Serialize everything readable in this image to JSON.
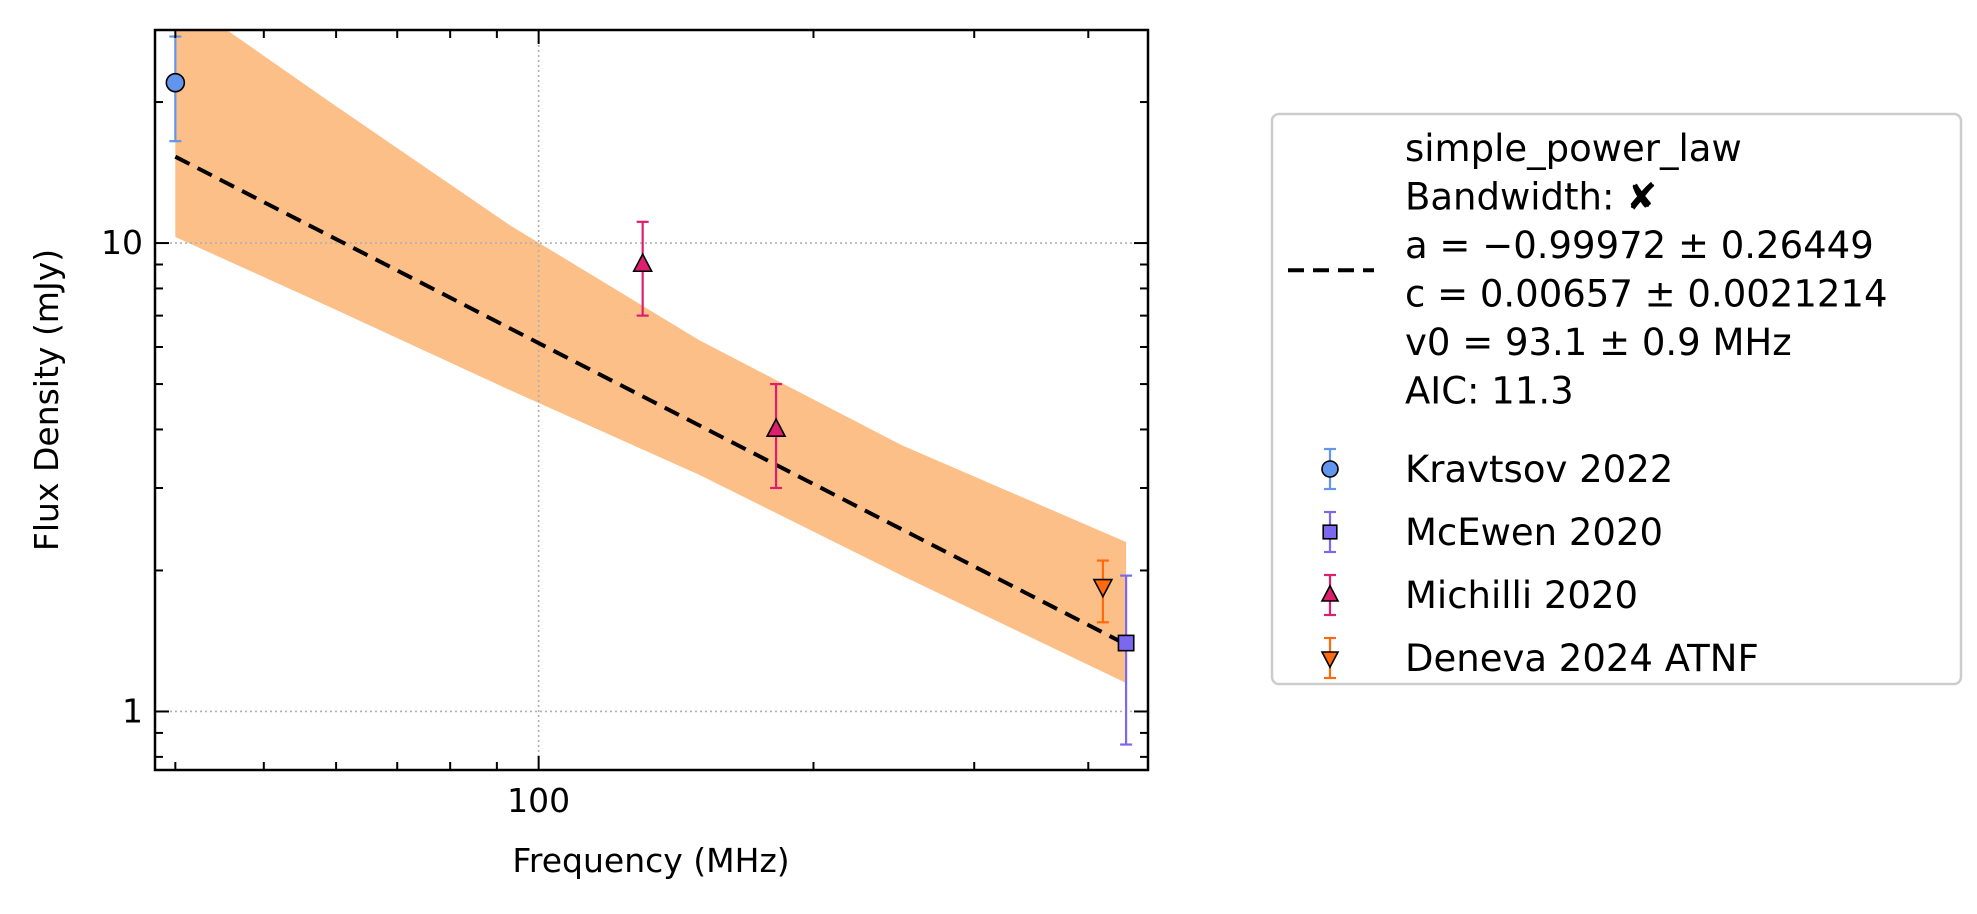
{
  "chart_data": {
    "type": "scatter",
    "title": "",
    "xlabel": "Frequency (MHz)",
    "ylabel": "Flux Density (mJy)",
    "xscale": "log",
    "yscale": "log",
    "xlim": [
      38,
      465
    ],
    "ylim": [
      0.75,
      28.5
    ],
    "xticks": [
      {
        "value": 100,
        "label": "100"
      }
    ],
    "yticks": [
      {
        "value": 1,
        "label": "1"
      },
      {
        "value": 10,
        "label": "10"
      }
    ],
    "grid": true,
    "legend_position": "right, outside plot",
    "model": {
      "name": "simple_power_law",
      "x_range": [
        40,
        440
      ],
      "a": -0.99972,
      "c": 0.00657,
      "v0_mhz": 93.1,
      "color": "#000000",
      "band_color": "#fdbf88",
      "band": [
        {
          "x": 40,
          "lower": 10.3,
          "upper": 34.0
        },
        {
          "x": 60,
          "lower": 7.2,
          "upper": 19.6
        },
        {
          "x": 93.1,
          "lower": 4.85,
          "upper": 10.9
        },
        {
          "x": 150,
          "lower": 3.2,
          "upper": 6.2
        },
        {
          "x": 250,
          "lower": 1.95,
          "upper": 3.7
        },
        {
          "x": 440,
          "lower": 1.15,
          "upper": 2.3
        }
      ]
    },
    "series": [
      {
        "name": "Kravtsov 2022",
        "marker": "circle",
        "color": "#6495ed",
        "points": [
          {
            "x": 40,
            "y": 22,
            "yerr_low": 5.5,
            "yerr_high": 5.6
          }
        ]
      },
      {
        "name": "McEwen 2020",
        "marker": "square",
        "color": "#7b68ee",
        "points": [
          {
            "x": 440,
            "y": 1.4,
            "yerr_low": 0.55,
            "yerr_high": 0.55
          }
        ]
      },
      {
        "name": "Michilli 2020",
        "marker": "triangle-up",
        "color": "#dc1f6e",
        "points": [
          {
            "x": 130,
            "y": 9.0,
            "yerr_low": 2.0,
            "yerr_high": 2.1
          },
          {
            "x": 182,
            "y": 4.0,
            "yerr_low": 1.0,
            "yerr_high": 1.0
          }
        ]
      },
      {
        "name": "Deneva 2024 ATNF",
        "marker": "triangle-down",
        "color": "#ff6a0e",
        "points": [
          {
            "x": 415,
            "y": 1.85,
            "yerr_low": 0.3,
            "yerr_high": 0.25
          }
        ]
      }
    ]
  },
  "legend": {
    "model_lines": [
      "simple_power_law",
      "Bandwidth: ✘",
      "a = −0.99972 ± 0.26449",
      "c = 0.00657 ± 0.0021214",
      "v0 = 93.1 ± 0.9 MHz",
      "AIC: 11.3"
    ]
  }
}
